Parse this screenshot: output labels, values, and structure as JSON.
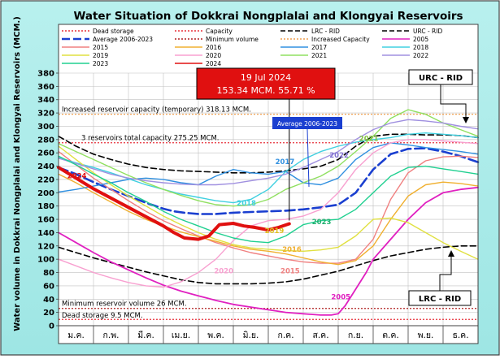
{
  "chart_data": {
    "type": "line",
    "title": "Water Situation of Dokkrai Nongplalai and Klongyai Reservoirs",
    "ylabel": "Water volume in Dokkrai Nongplalai and Klongyai Reservoirs (MCM.)",
    "ylim": [
      0,
      380
    ],
    "ytick_step": 20,
    "months": [
      "ม.ค.",
      "ก.พ.",
      "มี.ค.",
      "เม.ย.",
      "พ.ค.",
      "มิ.ย.",
      "ก.ค.",
      "ส.ค.",
      "ก.ย.",
      "ต.ค.",
      "พ.ย.",
      "ธ.ค."
    ],
    "x_domain": [
      0,
      12
    ],
    "grid": true,
    "legend": {
      "position": "top",
      "entries": [
        {
          "label": "Dead storage",
          "color": "#e8323c",
          "dash": "dotted"
        },
        {
          "label": "Capacity",
          "color": "#e8323c",
          "dash": "dotted"
        },
        {
          "label": "LRC - RID",
          "color": "#000000",
          "dash": "dashed"
        },
        {
          "label": "URC - RID",
          "color": "#000000",
          "dash": "dashed"
        },
        {
          "label": "Average 2006-2023",
          "color": "#1a3fd0",
          "dash": "longdash"
        },
        {
          "label": "Minimum volume",
          "color": "#b02020",
          "dash": "dotted"
        },
        {
          "label": "Increased Capacity",
          "color": "#f0a050",
          "dash": "dotted"
        },
        {
          "label": "2005",
          "color": "#e020c0",
          "dash": "solid"
        },
        {
          "label": "2015",
          "color": "#f08080",
          "dash": "solid"
        },
        {
          "label": "2016",
          "color": "#f0b030",
          "dash": "solid"
        },
        {
          "label": "2017",
          "color": "#3090e0",
          "dash": "solid"
        },
        {
          "label": "2018",
          "color": "#40d0e0",
          "dash": "solid"
        },
        {
          "label": "2019",
          "color": "#e0e040",
          "dash": "solid"
        },
        {
          "label": "2020",
          "color": "#f8a0d0",
          "dash": "solid"
        },
        {
          "label": "2021",
          "color": "#90e060",
          "dash": "solid"
        },
        {
          "label": "2022",
          "color": "#a090e0",
          "dash": "solid"
        },
        {
          "label": "2023",
          "color": "#20d090",
          "dash": "solid"
        },
        {
          "label": "2024",
          "color": "#e01010",
          "dash": "solid"
        }
      ]
    },
    "reference_lines": [
      {
        "name": "Increased reservoir capacity (temporary)",
        "label": "Increased reservoir capacity (temporary)  318.13 MCM.",
        "y": 318.13,
        "color": "#f0a050"
      },
      {
        "name": "3 reservoirs total capacity",
        "label": "3 reservoirs total capacity  275.25 MCM.",
        "y": 275.25,
        "color": "#e8323c"
      },
      {
        "name": "Minimum reservoir volume",
        "label": "Minimum reservoir volume 26 MCM.",
        "y": 26,
        "color": "#b02020"
      },
      {
        "name": "Dead storage",
        "label": "Dead storage 9.5 MCM.",
        "y": 9.5,
        "color": "#e8323c"
      }
    ],
    "series": [
      {
        "name": "URC - RID",
        "color": "#000000",
        "dash": "7,4",
        "width": 1.6,
        "x": [
          0,
          0.5,
          1,
          1.5,
          2,
          2.5,
          3,
          3.5,
          4,
          4.5,
          5,
          5.5,
          6,
          6.5,
          7,
          7.5,
          8,
          8.5,
          9,
          9.5,
          10,
          10.5,
          11,
          11.5,
          12
        ],
        "y": [
          285,
          270,
          258,
          250,
          243,
          238,
          235,
          233,
          232,
          231,
          230,
          230,
          231,
          233,
          236,
          240,
          250,
          270,
          285,
          288,
          288,
          287,
          287,
          286,
          283
        ]
      },
      {
        "name": "LRC - RID",
        "color": "#000000",
        "dash": "7,4",
        "width": 1.6,
        "x": [
          0,
          0.5,
          1,
          1.5,
          2,
          2.5,
          3,
          3.5,
          4,
          4.5,
          5,
          5.5,
          6,
          6.5,
          7,
          7.5,
          8,
          8.5,
          9,
          9.5,
          10,
          10.5,
          11,
          11.5,
          12
        ],
        "y": [
          118,
          110,
          102,
          95,
          88,
          81,
          75,
          69,
          65,
          63,
          63,
          63,
          64,
          66,
          70,
          76,
          82,
          90,
          98,
          105,
          110,
          115,
          118,
          120,
          120
        ]
      },
      {
        "name": "Average 2006-2023",
        "color": "#1a3fd0",
        "dash": "12,5",
        "width": 2.6,
        "x": [
          0,
          0.5,
          1,
          1.5,
          2,
          2.5,
          3,
          3.3,
          3.6,
          4,
          4.5,
          5,
          5.5,
          6,
          6.5,
          7,
          7.5,
          8,
          8.5,
          9,
          9.5,
          10,
          10.5,
          11,
          11.5,
          12
        ],
        "y": [
          238,
          228,
          216,
          205,
          195,
          185,
          176,
          172,
          170,
          168,
          168,
          170,
          171,
          172,
          173,
          175,
          178,
          182,
          200,
          235,
          258,
          266,
          267,
          262,
          255,
          246
        ]
      },
      {
        "name": "2005",
        "color": "#e020c0",
        "dash": "",
        "width": 1.8,
        "x": [
          0,
          0.5,
          1,
          1.5,
          2,
          2.5,
          3,
          3.5,
          4,
          4.5,
          5,
          5.5,
          6,
          6.5,
          7,
          7.5,
          7.8,
          8,
          8.2,
          8.5,
          8.8,
          9,
          9.5,
          10,
          10.5,
          11,
          11.5,
          12
        ],
        "y": [
          140,
          125,
          110,
          96,
          84,
          72,
          61,
          52,
          45,
          38,
          32,
          28,
          24,
          20,
          18,
          16,
          16,
          18,
          30,
          55,
          80,
          100,
          130,
          160,
          185,
          200,
          205,
          208
        ]
      },
      {
        "name": "2015",
        "color": "#f08080",
        "dash": "",
        "width": 1.4,
        "x": [
          0,
          0.5,
          1,
          1.5,
          2,
          2.5,
          3,
          3.5,
          4,
          4.5,
          5,
          5.5,
          6,
          6.5,
          7,
          7.5,
          8,
          8.5,
          9,
          9.5,
          10,
          10.5,
          11,
          11.5,
          12
        ],
        "y": [
          262,
          242,
          222,
          205,
          188,
          172,
          158,
          146,
          135,
          125,
          117,
          110,
          105,
          100,
          96,
          94,
          94,
          100,
          130,
          190,
          230,
          248,
          254,
          255,
          253
        ]
      },
      {
        "name": "2016",
        "color": "#f0b030",
        "dash": "",
        "width": 1.4,
        "x": [
          0,
          0.5,
          1,
          1.5,
          2,
          2.5,
          3,
          3.5,
          4,
          4.5,
          5,
          5.5,
          6,
          6.5,
          7,
          7.5,
          8,
          8.5,
          9,
          9.5,
          10,
          10.5,
          11,
          11.5,
          12
        ],
        "y": [
          228,
          215,
          200,
          186,
          172,
          160,
          150,
          141,
          134,
          127,
          120,
          115,
          112,
          108,
          102,
          96,
          92,
          98,
          120,
          160,
          195,
          212,
          216,
          214,
          210
        ]
      },
      {
        "name": "2017",
        "color": "#3090e0",
        "dash": "",
        "width": 1.4,
        "x": [
          0,
          0.5,
          1,
          1.5,
          2,
          2.5,
          3,
          3.5,
          4,
          4.5,
          5,
          5.5,
          6,
          6.5,
          7,
          7.5,
          8,
          8.5,
          9,
          9.5,
          10,
          10.5,
          11,
          11.5,
          12
        ],
        "y": [
          201,
          205,
          210,
          215,
          220,
          222,
          220,
          215,
          212,
          225,
          235,
          230,
          228,
          232,
          215,
          212,
          222,
          250,
          268,
          275,
          272,
          268,
          265,
          262,
          258
        ]
      },
      {
        "name": "2018",
        "color": "#40d0e0",
        "dash": "",
        "width": 1.4,
        "x": [
          0,
          0.5,
          1,
          1.5,
          2,
          2.5,
          3,
          3.5,
          4,
          4.5,
          5,
          5.5,
          6,
          6.5,
          7,
          7.5,
          8,
          8.5,
          9,
          9.5,
          10,
          10.5,
          11,
          11.5,
          12
        ],
        "y": [
          253,
          245,
          238,
          230,
          221,
          212,
          205,
          198,
          193,
          188,
          185,
          190,
          205,
          232,
          250,
          262,
          270,
          276,
          280,
          283,
          288,
          290,
          288,
          286,
          283
        ]
      },
      {
        "name": "2019",
        "color": "#e0e040",
        "dash": "",
        "width": 1.4,
        "x": [
          0,
          0.5,
          1,
          1.5,
          2,
          2.5,
          3,
          3.5,
          4,
          4.5,
          5,
          5.5,
          6,
          6.5,
          7,
          7.5,
          8,
          8.5,
          9,
          9.5,
          10,
          10.5,
          11,
          11.5,
          12
        ],
        "y": [
          270,
          250,
          230,
          212,
          195,
          180,
          165,
          152,
          140,
          130,
          122,
          117,
          115,
          113,
          112,
          114,
          118,
          135,
          160,
          162,
          155,
          140,
          125,
          112,
          100
        ]
      },
      {
        "name": "2020",
        "color": "#f8a0d0",
        "dash": "",
        "width": 1.4,
        "x": [
          0,
          0.5,
          1,
          1.5,
          2,
          2.5,
          3,
          3.5,
          4,
          4.5,
          5,
          5.5,
          6,
          6.5,
          7,
          7.5,
          8,
          8.5,
          9,
          9.5,
          10,
          10.5,
          11,
          11.5,
          12
        ],
        "y": [
          100,
          90,
          80,
          72,
          65,
          60,
          58,
          66,
          80,
          100,
          128,
          150,
          158,
          160,
          165,
          175,
          200,
          235,
          260,
          275,
          280,
          280,
          278,
          276,
          274
        ]
      },
      {
        "name": "2021",
        "color": "#90e060",
        "dash": "",
        "width": 1.4,
        "x": [
          0,
          0.5,
          1,
          1.5,
          2,
          2.5,
          3,
          3.5,
          4,
          4.5,
          5,
          5.5,
          6,
          6.5,
          7,
          7.5,
          8,
          8.5,
          9,
          9.5,
          10,
          10.5,
          11,
          11.5,
          12
        ],
        "y": [
          274,
          262,
          250,
          238,
          226,
          215,
          205,
          196,
          188,
          182,
          180,
          182,
          190,
          205,
          215,
          225,
          240,
          262,
          285,
          312,
          325,
          318,
          305,
          295,
          285
        ]
      },
      {
        "name": "2022",
        "color": "#a090e0",
        "dash": "",
        "width": 1.4,
        "x": [
          0,
          0.5,
          1,
          1.5,
          2,
          2.5,
          3,
          3.5,
          4,
          4.5,
          5,
          5.5,
          6,
          6.5,
          7,
          7.5,
          8,
          8.5,
          9,
          9.5,
          10,
          10.5,
          11,
          11.5,
          12
        ],
        "y": [
          252,
          244,
          236,
          228,
          222,
          218,
          215,
          213,
          212,
          212,
          214,
          218,
          222,
          228,
          238,
          250,
          262,
          280,
          295,
          305,
          310,
          308,
          305,
          300,
          296
        ]
      },
      {
        "name": "2023",
        "color": "#20d090",
        "dash": "",
        "width": 1.4,
        "x": [
          0,
          0.5,
          1,
          1.5,
          2,
          2.5,
          3,
          3.5,
          4,
          4.5,
          5,
          5.5,
          6,
          6.5,
          7,
          7.5,
          8,
          8.5,
          9,
          9.5,
          10,
          10.5,
          11,
          11.5,
          12
        ],
        "y": [
          255,
          242,
          228,
          215,
          200,
          187,
          172,
          160,
          150,
          140,
          132,
          127,
          125,
          135,
          152,
          158,
          160,
          175,
          200,
          225,
          238,
          240,
          236,
          232,
          228
        ]
      },
      {
        "name": "2024",
        "color": "#e01010",
        "dash": "",
        "width": 4,
        "x": [
          0,
          0.5,
          1,
          1.5,
          2,
          2.5,
          3,
          3.3,
          3.6,
          4,
          4.3,
          4.6,
          5,
          5.3,
          5.6,
          6,
          6.3,
          6.6
        ],
        "y": [
          238,
          222,
          206,
          192,
          178,
          164,
          150,
          140,
          132,
          130,
          135,
          152,
          154,
          150,
          148,
          144,
          148,
          153.34
        ]
      }
    ],
    "series_labels": [
      {
        "name": "2024",
        "text": "2024",
        "x": 0.25,
        "y": 222,
        "color": "#e01010"
      },
      {
        "name": "2017",
        "text": "2017",
        "x": 6.2,
        "y": 243,
        "color": "#3090e0"
      },
      {
        "name": "2018",
        "text": "2018",
        "x": 5.1,
        "y": 181,
        "color": "#40d0e0"
      },
      {
        "name": "2019",
        "text": "2019",
        "x": 5.9,
        "y": 139,
        "color": "#e0c020"
      },
      {
        "name": "2016",
        "text": "2016",
        "x": 6.4,
        "y": 111,
        "color": "#f0b030"
      },
      {
        "name": "2015",
        "text": "2015",
        "x": 6.35,
        "y": 79,
        "color": "#f08080"
      },
      {
        "name": "2020",
        "text": "2020",
        "x": 4.45,
        "y": 79,
        "color": "#f8a0d0"
      },
      {
        "name": "2005",
        "text": "2005",
        "x": 7.8,
        "y": 40,
        "color": "#e020c0"
      },
      {
        "name": "2023",
        "text": "2023",
        "x": 7.25,
        "y": 153,
        "color": "#20b070"
      },
      {
        "name": "2021",
        "text": "2021",
        "x": 8.6,
        "y": 278,
        "color": "#80c040"
      },
      {
        "name": "2022",
        "text": "2022",
        "x": 7.75,
        "y": 253,
        "color": "#8070d0"
      }
    ],
    "current": {
      "date": "19 Jul 2024",
      "volume": 153.34,
      "percent": 55.71,
      "detail": "153.34 MCM. 55.71 %"
    },
    "callouts": {
      "average": "Average 2006-2023",
      "urc": "URC - RID",
      "lrc": "LRC - RID"
    }
  }
}
